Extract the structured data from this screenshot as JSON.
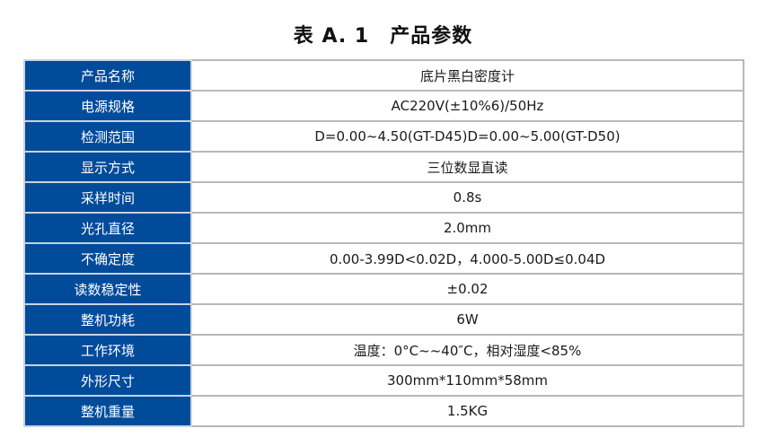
{
  "title": "表 A. 1　产品参数",
  "colors": {
    "header_bg": "#014b9b",
    "header_text": "#ffffff",
    "border": "#b8b8b8"
  },
  "rows": [
    {
      "label": "产品名称",
      "value": "底片黑白密度计"
    },
    {
      "label": "电源规格",
      "value": "AC220V(±10%6)/50Hz"
    },
    {
      "label": "检测范围",
      "value": "D=0.00~4.50(GT-D45)D=0.00~5.00(GT-D50)"
    },
    {
      "label": "显示方式",
      "value": "三位数显直读"
    },
    {
      "label": "采样时间",
      "value": "0.8s"
    },
    {
      "label": "光孔直径",
      "value": "2.0mm"
    },
    {
      "label": "不确定度",
      "value": "0.00-3.99D<0.02D，4.000-5.00D≤0.04D"
    },
    {
      "label": "读数稳定性",
      "value": "±0.02"
    },
    {
      "label": "整机功耗",
      "value": "6W"
    },
    {
      "label": "工作环境",
      "value": "温度：0°C~~40″C，相对湿度<85%"
    },
    {
      "label": "外形尺寸",
      "value": "300mm*110mm*58mm"
    },
    {
      "label": "整机重量",
      "value": "1.5KG"
    }
  ]
}
